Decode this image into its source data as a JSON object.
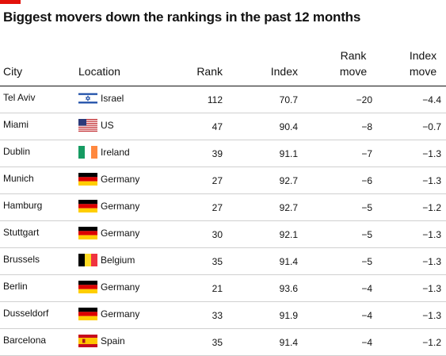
{
  "title": "Biggest movers down the rankings in the past 12 months",
  "headers": {
    "city": "City",
    "location": "Location",
    "rank": "Rank",
    "index": "Index",
    "rank_move": "Rank move",
    "index_move": "Index move"
  },
  "colors": {
    "accent": "#e3120b",
    "text": "#121212",
    "rule": "#d0d0d0"
  },
  "rows": [
    {
      "city": "Tel Aviv",
      "location": "Israel",
      "flag": "israel-flag-icon",
      "rank": "112",
      "index": "70.7",
      "rank_move": "−20",
      "index_move": "−4.4"
    },
    {
      "city": "Miami",
      "location": "US",
      "flag": "us-flag-icon",
      "rank": "47",
      "index": "90.4",
      "rank_move": "−8",
      "index_move": "−0.7"
    },
    {
      "city": "Dublin",
      "location": "Ireland",
      "flag": "ireland-flag-icon",
      "rank": "39",
      "index": "91.1",
      "rank_move": "−7",
      "index_move": "−1.3"
    },
    {
      "city": "Munich",
      "location": "Germany",
      "flag": "germany-flag-icon",
      "rank": "27",
      "index": "92.7",
      "rank_move": "−6",
      "index_move": "−1.3"
    },
    {
      "city": "Hamburg",
      "location": "Germany",
      "flag": "germany-flag-icon",
      "rank": "27",
      "index": "92.7",
      "rank_move": "−5",
      "index_move": "−1.2"
    },
    {
      "city": "Stuttgart",
      "location": "Germany",
      "flag": "germany-flag-icon",
      "rank": "30",
      "index": "92.1",
      "rank_move": "−5",
      "index_move": "−1.3"
    },
    {
      "city": "Brussels",
      "location": "Belgium",
      "flag": "belgium-flag-icon",
      "rank": "35",
      "index": "91.4",
      "rank_move": "−5",
      "index_move": "−1.3"
    },
    {
      "city": "Berlin",
      "location": "Germany",
      "flag": "germany-flag-icon",
      "rank": "21",
      "index": "93.6",
      "rank_move": "−4",
      "index_move": "−1.3"
    },
    {
      "city": "Dusseldorf",
      "location": "Germany",
      "flag": "germany-flag-icon",
      "rank": "33",
      "index": "91.9",
      "rank_move": "−4",
      "index_move": "−1.3"
    },
    {
      "city": "Barcelona",
      "location": "Spain",
      "flag": "spain-flag-icon",
      "rank": "35",
      "index": "91.4",
      "rank_move": "−4",
      "index_move": "−1.2"
    }
  ]
}
